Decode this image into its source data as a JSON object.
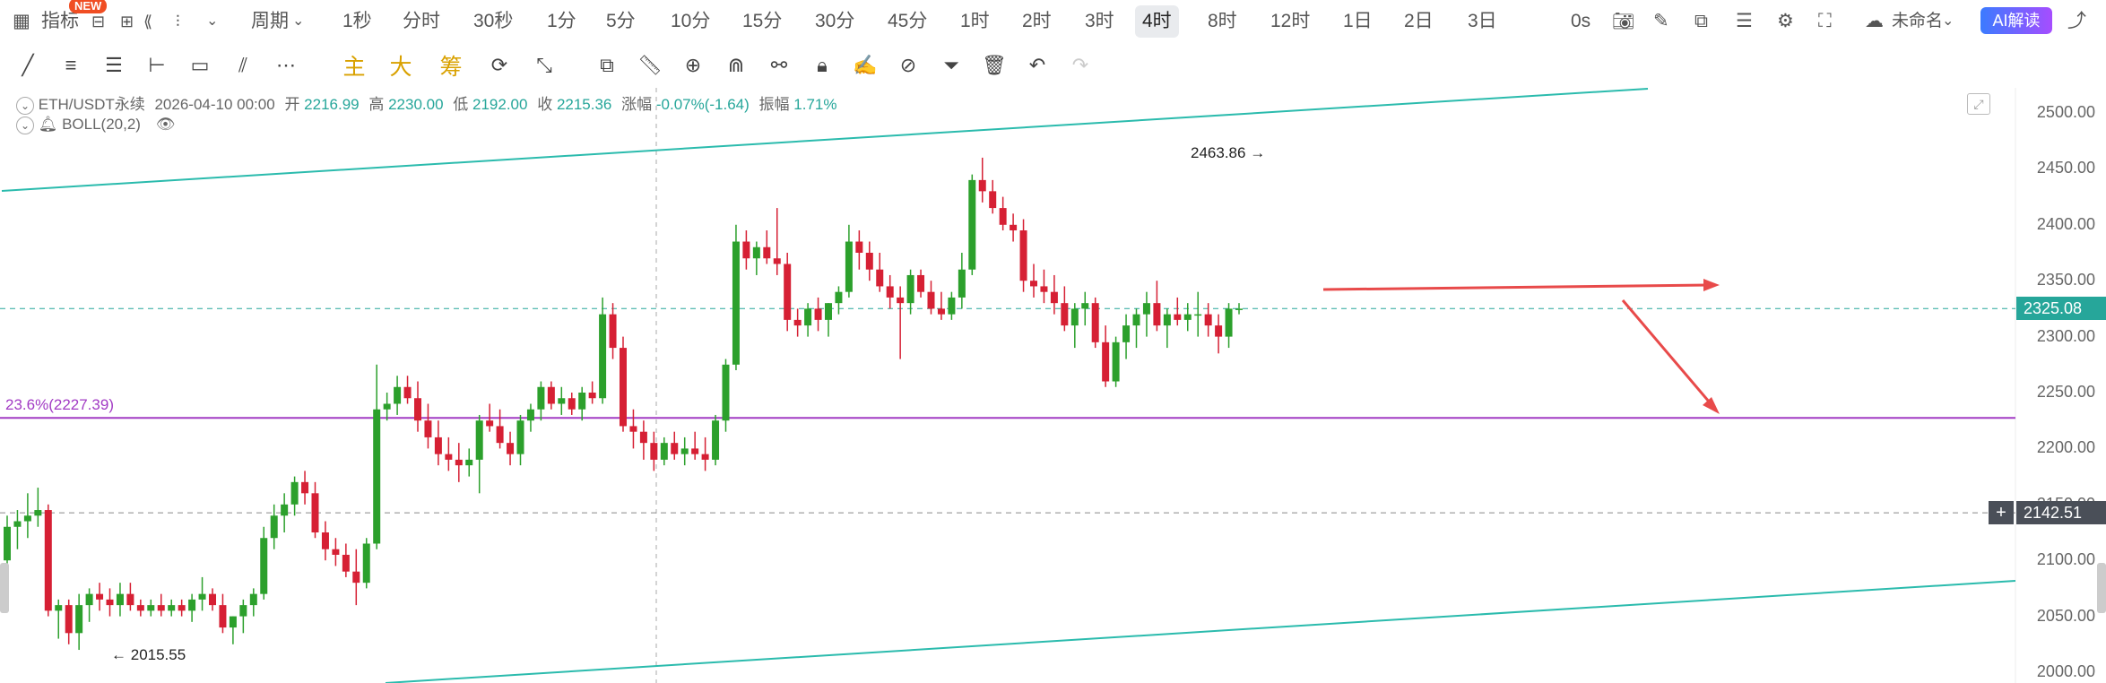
{
  "topbar": {
    "indicators_label": "指标",
    "new_badge": "NEW",
    "period_label": "周期",
    "periods": [
      "1秒",
      "分时",
      "30秒",
      "1分",
      "5分",
      "10分",
      "15分",
      "30分",
      "45分",
      "1时",
      "2时",
      "3时",
      "4时",
      "8时",
      "12时",
      "1日",
      "2日",
      "3日"
    ],
    "active_period": "4时",
    "countdown": "0s",
    "layout_name": "未命名",
    "ai_button": "AI解读"
  },
  "toolbar": {
    "main_label": "主",
    "big_label": "大",
    "chip_label": "筹"
  },
  "legend": {
    "symbol": "ETH/USDT永续",
    "datetime": "2026-04-10 00:00",
    "open_label": "开",
    "open": "2216.99",
    "high_label": "高",
    "high": "2230.00",
    "low_label": "低",
    "low": "2192.00",
    "close_label": "收",
    "close": "2215.36",
    "change_label": "涨幅",
    "change": "-0.07%(-1.64)",
    "amplitude_label": "振幅",
    "amplitude": "1.71%",
    "indicator": "BOLL(20,2)"
  },
  "price_axis": {
    "ticks": [
      "2500.00",
      "2450.00",
      "2400.00",
      "2350.00",
      "2300.00",
      "2250.00",
      "2200.00",
      "2150.00",
      "2100.00",
      "2050.00",
      "2000.00"
    ],
    "current_price": "2325.08",
    "crosshair_price": "2142.51"
  },
  "annotations": {
    "high_marker": "2463.86",
    "low_marker": "2015.55",
    "fib_label": "23.6%(2227.39)"
  },
  "colors": {
    "up": "#2ca02c",
    "down": "#d62034",
    "channel": "#2bbbad",
    "fib": "#a23bc4",
    "arrow": "#e84a4a",
    "current_price_bg": "#26a69a"
  },
  "chart_data": {
    "type": "candlestick",
    "ylim": [
      2000,
      2500
    ],
    "candles": [
      [
        2100,
        2140,
        2090,
        2130
      ],
      [
        2130,
        2145,
        2110,
        2135
      ],
      [
        2135,
        2160,
        2120,
        2140
      ],
      [
        2140,
        2165,
        2130,
        2145
      ],
      [
        2145,
        2150,
        2050,
        2055
      ],
      [
        2055,
        2065,
        2030,
        2060
      ],
      [
        2060,
        2065,
        2025,
        2035
      ],
      [
        2035,
        2070,
        2020,
        2060
      ],
      [
        2060,
        2075,
        2045,
        2070
      ],
      [
        2070,
        2080,
        2055,
        2065
      ],
      [
        2065,
        2075,
        2050,
        2060
      ],
      [
        2060,
        2080,
        2050,
        2070
      ],
      [
        2070,
        2080,
        2055,
        2060
      ],
      [
        2060,
        2065,
        2050,
        2055
      ],
      [
        2055,
        2065,
        2050,
        2060
      ],
      [
        2060,
        2070,
        2050,
        2055
      ],
      [
        2055,
        2065,
        2050,
        2060
      ],
      [
        2060,
        2065,
        2050,
        2055
      ],
      [
        2055,
        2070,
        2045,
        2065
      ],
      [
        2065,
        2085,
        2055,
        2070
      ],
      [
        2070,
        2075,
        2055,
        2060
      ],
      [
        2060,
        2070,
        2035,
        2040
      ],
      [
        2040,
        2050,
        2025,
        2050
      ],
      [
        2050,
        2065,
        2035,
        2060
      ],
      [
        2060,
        2075,
        2050,
        2070
      ],
      [
        2070,
        2130,
        2065,
        2120
      ],
      [
        2120,
        2150,
        2110,
        2140
      ],
      [
        2140,
        2160,
        2125,
        2150
      ],
      [
        2150,
        2175,
        2140,
        2170
      ],
      [
        2170,
        2180,
        2150,
        2160
      ],
      [
        2160,
        2170,
        2120,
        2125
      ],
      [
        2125,
        2135,
        2100,
        2110
      ],
      [
        2110,
        2120,
        2095,
        2105
      ],
      [
        2105,
        2115,
        2085,
        2090
      ],
      [
        2090,
        2110,
        2060,
        2080
      ],
      [
        2080,
        2120,
        2075,
        2115
      ],
      [
        2115,
        2275,
        2110,
        2235
      ],
      [
        2235,
        2250,
        2225,
        2240
      ],
      [
        2240,
        2265,
        2230,
        2255
      ],
      [
        2255,
        2265,
        2240,
        2245
      ],
      [
        2245,
        2260,
        2215,
        2225
      ],
      [
        2225,
        2240,
        2200,
        2210
      ],
      [
        2210,
        2225,
        2185,
        2195
      ],
      [
        2195,
        2210,
        2180,
        2190
      ],
      [
        2190,
        2205,
        2170,
        2185
      ],
      [
        2185,
        2200,
        2175,
        2190
      ],
      [
        2190,
        2230,
        2160,
        2225
      ],
      [
        2225,
        2240,
        2215,
        2220
      ],
      [
        2220,
        2235,
        2200,
        2205
      ],
      [
        2205,
        2215,
        2185,
        2195
      ],
      [
        2195,
        2230,
        2185,
        2225
      ],
      [
        2225,
        2240,
        2215,
        2235
      ],
      [
        2235,
        2260,
        2225,
        2255
      ],
      [
        2255,
        2260,
        2235,
        2240
      ],
      [
        2240,
        2255,
        2230,
        2245
      ],
      [
        2245,
        2250,
        2230,
        2235
      ],
      [
        2235,
        2255,
        2225,
        2250
      ],
      [
        2250,
        2260,
        2240,
        2245
      ],
      [
        2245,
        2335,
        2240,
        2320
      ],
      [
        2320,
        2330,
        2280,
        2290
      ],
      [
        2290,
        2300,
        2215,
        2220
      ],
      [
        2220,
        2235,
        2200,
        2215
      ],
      [
        2215,
        2225,
        2190,
        2205
      ],
      [
        2205,
        2215,
        2180,
        2190
      ],
      [
        2190,
        2210,
        2185,
        2205
      ],
      [
        2205,
        2215,
        2190,
        2195
      ],
      [
        2195,
        2210,
        2185,
        2200
      ],
      [
        2200,
        2215,
        2190,
        2195
      ],
      [
        2195,
        2210,
        2180,
        2190
      ],
      [
        2190,
        2230,
        2185,
        2225
      ],
      [
        2225,
        2280,
        2215,
        2275
      ],
      [
        2275,
        2400,
        2270,
        2385
      ],
      [
        2385,
        2395,
        2360,
        2370
      ],
      [
        2370,
        2385,
        2355,
        2380
      ],
      [
        2380,
        2395,
        2365,
        2370
      ],
      [
        2370,
        2415,
        2355,
        2365
      ],
      [
        2365,
        2375,
        2305,
        2315
      ],
      [
        2315,
        2325,
        2300,
        2310
      ],
      [
        2310,
        2330,
        2300,
        2325
      ],
      [
        2325,
        2335,
        2305,
        2315
      ],
      [
        2315,
        2330,
        2300,
        2330
      ],
      [
        2330,
        2345,
        2320,
        2340
      ],
      [
        2340,
        2400,
        2335,
        2385
      ],
      [
        2385,
        2395,
        2360,
        2375
      ],
      [
        2375,
        2385,
        2350,
        2360
      ],
      [
        2360,
        2375,
        2340,
        2345
      ],
      [
        2345,
        2355,
        2325,
        2335
      ],
      [
        2335,
        2345,
        2280,
        2330
      ],
      [
        2330,
        2360,
        2320,
        2355
      ],
      [
        2355,
        2360,
        2335,
        2340
      ],
      [
        2340,
        2350,
        2320,
        2325
      ],
      [
        2325,
        2340,
        2315,
        2320
      ],
      [
        2320,
        2340,
        2315,
        2335
      ],
      [
        2335,
        2375,
        2325,
        2360
      ],
      [
        2360,
        2445,
        2355,
        2440
      ],
      [
        2440,
        2460,
        2420,
        2430
      ],
      [
        2430,
        2440,
        2410,
        2415
      ],
      [
        2415,
        2425,
        2395,
        2400
      ],
      [
        2400,
        2410,
        2385,
        2395
      ],
      [
        2395,
        2405,
        2340,
        2350
      ],
      [
        2350,
        2365,
        2335,
        2345
      ],
      [
        2345,
        2360,
        2330,
        2340
      ],
      [
        2340,
        2355,
        2320,
        2330
      ],
      [
        2330,
        2345,
        2305,
        2310
      ],
      [
        2310,
        2330,
        2290,
        2325
      ],
      [
        2325,
        2340,
        2310,
        2330
      ],
      [
        2330,
        2335,
        2290,
        2295
      ],
      [
        2295,
        2310,
        2255,
        2260
      ],
      [
        2260,
        2300,
        2255,
        2295
      ],
      [
        2295,
        2320,
        2280,
        2310
      ],
      [
        2310,
        2325,
        2290,
        2320
      ],
      [
        2320,
        2340,
        2300,
        2330
      ],
      [
        2330,
        2350,
        2305,
        2310
      ],
      [
        2310,
        2325,
        2290,
        2320
      ],
      [
        2320,
        2335,
        2310,
        2315
      ],
      [
        2315,
        2330,
        2305,
        2320
      ],
      [
        2320,
        2340,
        2300,
        2320
      ],
      [
        2320,
        2330,
        2300,
        2310
      ],
      [
        2310,
        2320,
        2285,
        2300
      ],
      [
        2300,
        2330,
        2290,
        2325
      ],
      [
        2325,
        2330,
        2320,
        2325
      ]
    ],
    "horizontal_lines": {
      "fib_23_6": 2227.39,
      "current": 2325.08,
      "crosshair": 2142.51
    }
  }
}
